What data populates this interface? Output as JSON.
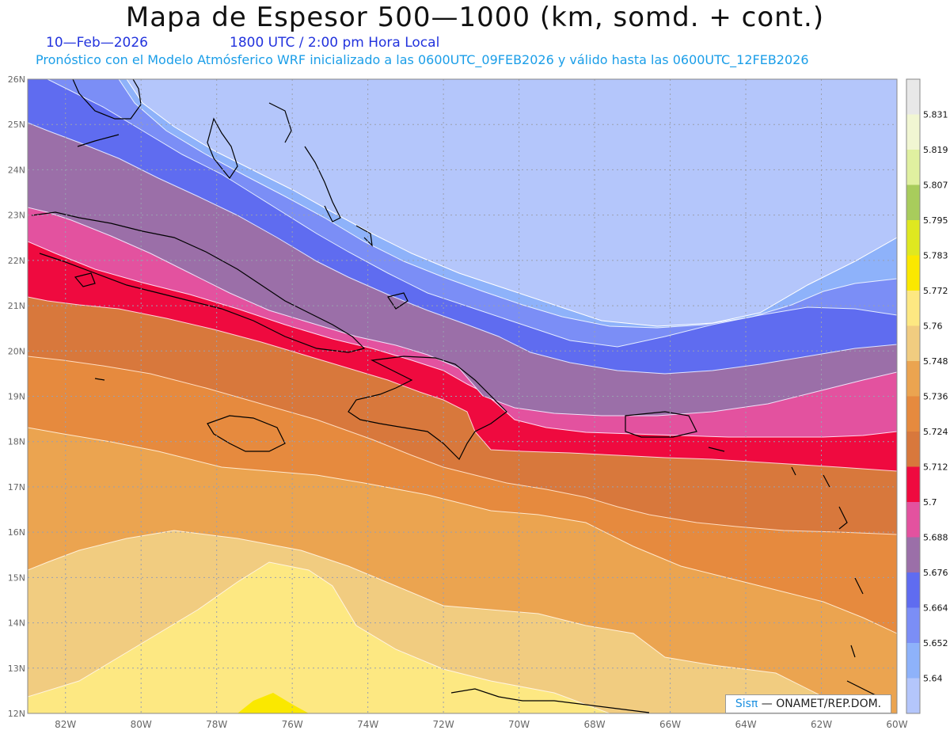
{
  "title": "Mapa de Espesor 500—1000 (km, somd. + cont.)",
  "date": "10—Feb—2026",
  "time": "1800 UTC / 2:00 pm Hora Local",
  "subtitle": "Pronóstico con el Modelo Atmósferico WRF inicializado a las 0600UTC_09FEB2026 y válido hasta las  0600UTC_12FEB2026",
  "credit": {
    "brand": "Sisπ",
    "org": " — ONAMET/REP.DOM."
  },
  "map": {
    "lon_range": [
      -83,
      -60
    ],
    "lat_range": [
      12,
      26
    ],
    "lon_labels": [
      "82W",
      "80W",
      "78W",
      "76W",
      "74W",
      "72W",
      "70W",
      "68W",
      "66W",
      "64W",
      "62W",
      "60W"
    ],
    "lat_labels": [
      "12N",
      "13N",
      "14N",
      "15N",
      "16N",
      "17N",
      "18N",
      "19N",
      "20N",
      "21N",
      "22N",
      "23N",
      "24N",
      "25N",
      "26N"
    ]
  },
  "colorbar": {
    "levels": [
      {
        "label": "5.64",
        "color": "#b4c6fb"
      },
      {
        "label": "5.652",
        "color": "#8eb2fa"
      },
      {
        "label": "5.664",
        "color": "#7b8ef6"
      },
      {
        "label": "5.676",
        "color": "#5f6cf0"
      },
      {
        "label": "5.688",
        "color": "#9b6fa8"
      },
      {
        "label": "5.7",
        "color": "#e3529f"
      },
      {
        "label": "5.712",
        "color": "#ef0a3f"
      },
      {
        "label": "5.724",
        "color": "#d8783c"
      },
      {
        "label": "5.736",
        "color": "#e68a3e"
      },
      {
        "label": "5.748",
        "color": "#eba450"
      },
      {
        "label": "5.76",
        "color": "#f1cc80"
      },
      {
        "label": "5.772",
        "color": "#fde882"
      },
      {
        "label": "5.783",
        "color": "#fae800"
      },
      {
        "label": "5.795",
        "color": "#dfe820"
      },
      {
        "label": "5.807",
        "color": "#a8cc5c"
      },
      {
        "label": "5.819",
        "color": "#e0f0a0"
      },
      {
        "label": "5.831",
        "color": "#f1f6d2"
      }
    ],
    "top_color": "#e8e8e8"
  }
}
